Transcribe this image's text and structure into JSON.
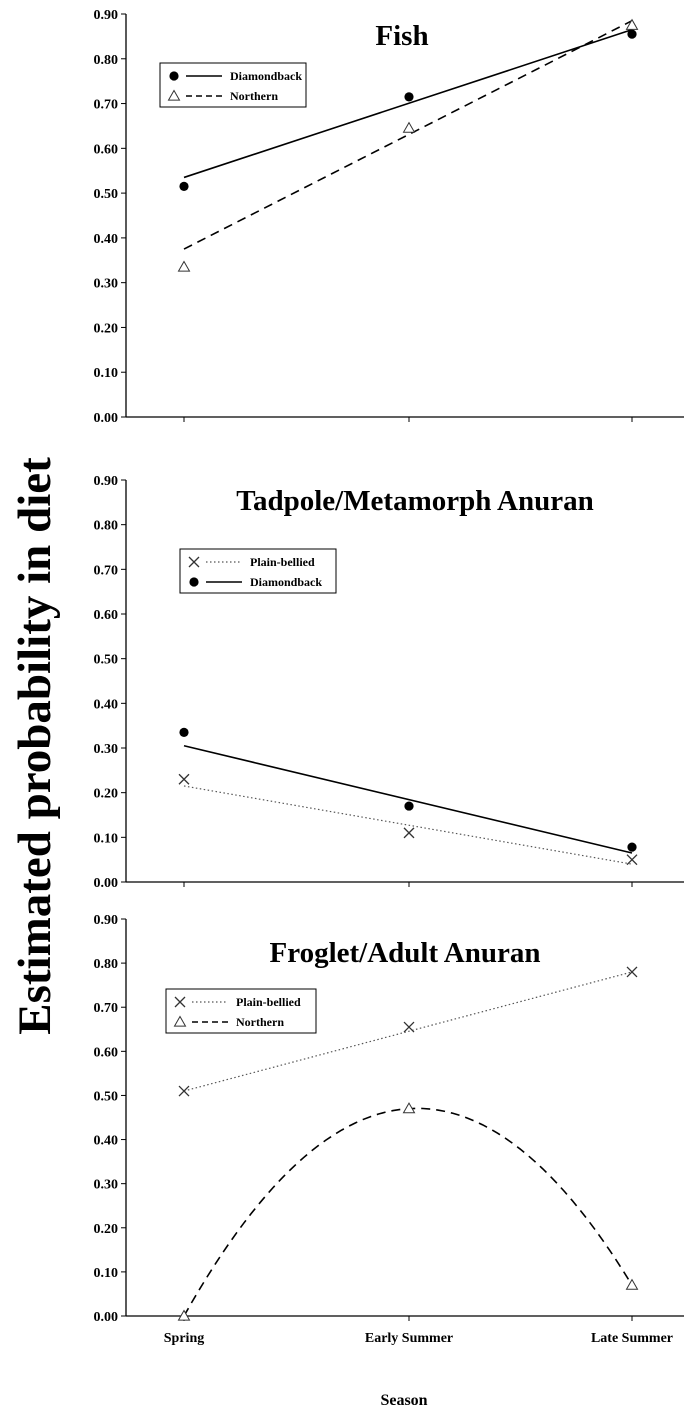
{
  "chart_data": {
    "ylabel": "Estimated probability in diet",
    "xlabel": "Season",
    "categories": [
      "Spring",
      "Early Summer",
      "Late Summer"
    ],
    "ytick_labels": [
      "0.00",
      "0.10",
      "0.20",
      "0.30",
      "0.40",
      "0.50",
      "0.60",
      "0.70",
      "0.80",
      "0.90"
    ],
    "panels": [
      {
        "type": "scatter",
        "title": "Fish",
        "ylim": [
          0,
          0.9
        ],
        "legend_position": "top-left",
        "legend_order": [
          "Diamondback",
          "Northern"
        ],
        "series": [
          {
            "name": "Diamondback",
            "marker": "circle",
            "line": "solid",
            "values": [
              0.515,
              0.715,
              0.855
            ],
            "fit_type": "linear",
            "fit": [
              0.535,
              0.695,
              0.865
            ]
          },
          {
            "name": "Northern",
            "marker": "triangle",
            "line": "dashed",
            "values": [
              0.335,
              0.645,
              0.875
            ],
            "fit_type": "linear",
            "fit": [
              0.375,
              0.63,
              0.885
            ]
          }
        ]
      },
      {
        "type": "scatter",
        "title": "Tadpole/Metamorph Anuran",
        "ylim": [
          0,
          0.9
        ],
        "legend_position": "top-left",
        "legend_order": [
          "Plain-bellied",
          "Diamondback"
        ],
        "series": [
          {
            "name": "Plain-bellied",
            "marker": "x",
            "line": "dotted",
            "values": [
              0.23,
              0.11,
              0.05
            ],
            "fit_type": "linear",
            "fit": [
              0.215,
              0.125,
              0.04
            ]
          },
          {
            "name": "Diamondback",
            "marker": "circle",
            "line": "solid",
            "values": [
              0.335,
              0.17,
              0.078
            ],
            "fit_type": "linear",
            "fit": [
              0.305,
              0.185,
              0.065
            ]
          }
        ]
      },
      {
        "type": "scatter",
        "title": "Froglet/Adult Anuran",
        "ylim": [
          0,
          0.9
        ],
        "legend_position": "top-left",
        "legend_order": [
          "Plain-bellied",
          "Northern"
        ],
        "series": [
          {
            "name": "Plain-bellied",
            "marker": "x",
            "line": "dotted",
            "values": [
              0.51,
              0.655,
              0.78
            ],
            "fit_type": "linear",
            "fit": [
              0.51,
              0.645,
              0.78
            ]
          },
          {
            "name": "Northern",
            "marker": "triangle",
            "line": "dashed",
            "values": [
              0.0,
              0.47,
              0.07
            ],
            "fit_type": "quadratic",
            "fit": [
              0.0,
              0.47,
              0.07
            ]
          }
        ]
      }
    ]
  }
}
